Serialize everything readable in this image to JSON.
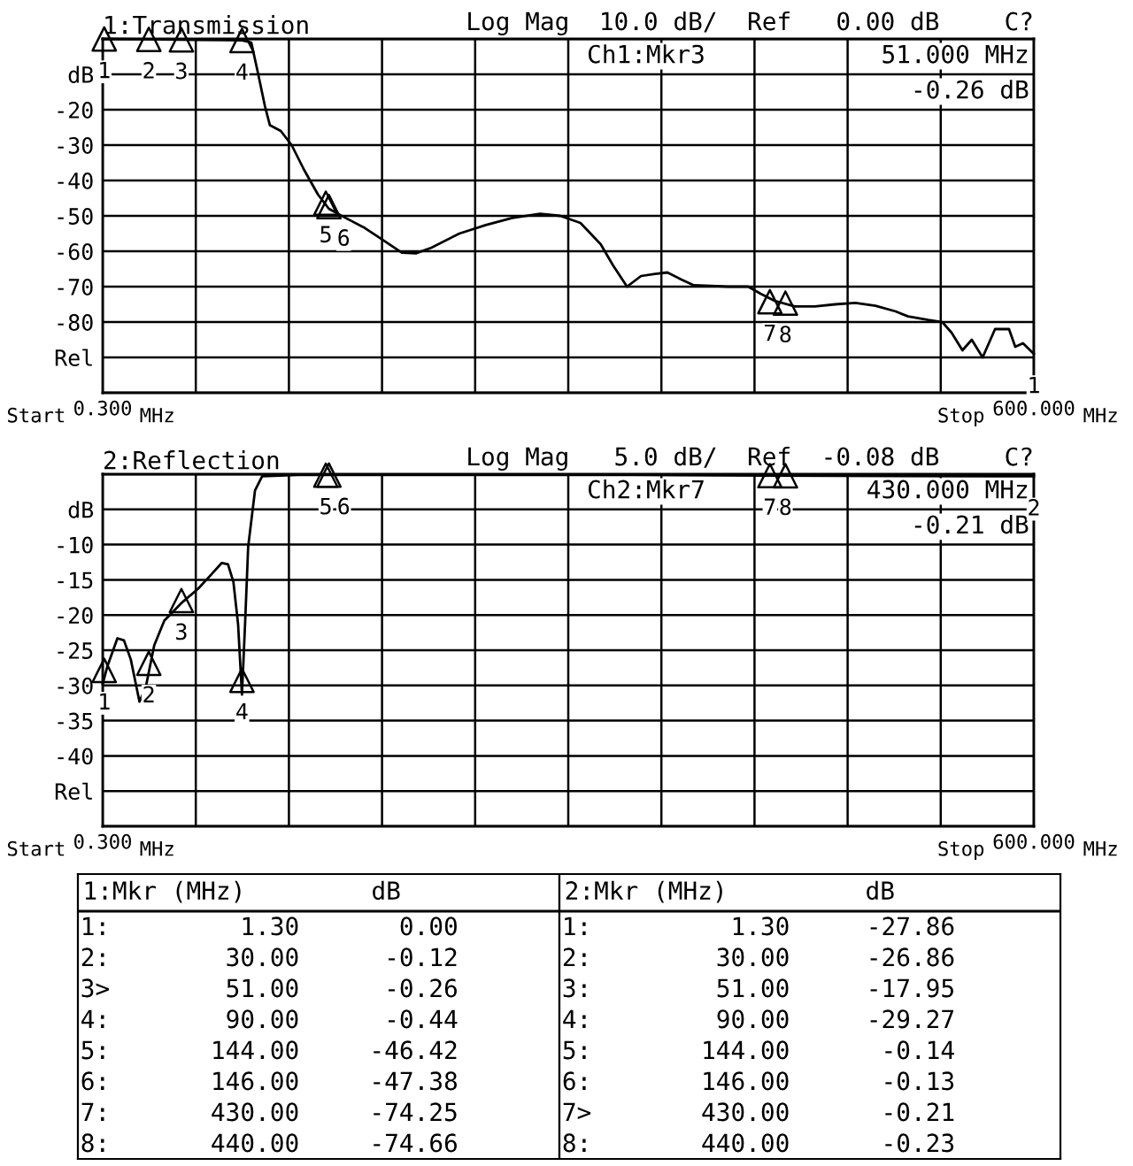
{
  "chart_data": [
    {
      "type": "line",
      "title": "1:Transmission",
      "grid": true,
      "legend": false,
      "xlim": [
        0.3,
        600
      ],
      "xticks": [
        {
          "value": 0.3,
          "label": "0.300"
        },
        {
          "value": 60.27,
          "label": null
        },
        {
          "value": 120.24,
          "label": null
        },
        {
          "value": 180.21,
          "label": null
        },
        {
          "value": 240.18,
          "label": null
        },
        {
          "value": 300.15,
          "label": null
        },
        {
          "value": 360.12,
          "label": null
        },
        {
          "value": 420.09,
          "label": null
        },
        {
          "value": 480.06,
          "label": null
        },
        {
          "value": 540.03,
          "label": null
        },
        {
          "value": 600,
          "label": "600.000"
        }
      ],
      "ylim": [
        -100,
        0
      ],
      "yticks": [
        {
          "value": 0,
          "label": null
        },
        {
          "value": -10,
          "label": "dB"
        },
        -20,
        -30,
        -40,
        -50,
        -60,
        -70,
        -80,
        {
          "value": -90,
          "label": "Rel"
        },
        {
          "value": -100,
          "label": null
        }
      ],
      "series": [
        {
          "type": "line",
          "color": "#000000",
          "x": [
            0.3,
            30,
            60,
            90,
            96,
            100,
            104.8,
            108,
            115,
            122,
            130,
            139,
            146,
            156,
            169,
            180,
            193,
            202,
            212,
            230,
            247,
            264,
            282,
            295,
            308,
            321,
            329,
            338,
            347,
            356,
            364,
            373,
            381,
            403,
            416,
            424,
            433,
            446,
            459,
            472,
            485,
            498,
            511,
            519,
            532,
            541,
            547,
            554,
            560,
            567,
            575,
            584,
            588,
            593,
            600
          ],
          "values": [
            0,
            -0.1,
            -0.3,
            -0.4,
            -1,
            -9,
            -19,
            -24.4,
            -26,
            -30,
            -37,
            -44,
            -48,
            -50.4,
            -53.4,
            -56.6,
            -60.4,
            -60.6,
            -59,
            -55,
            -52.6,
            -50.6,
            -49.4,
            -50,
            -52,
            -58,
            -64,
            -70,
            -67,
            -66.4,
            -66,
            -68,
            -69.6,
            -70,
            -70,
            -72,
            -74,
            -75.6,
            -75.6,
            -75,
            -74.6,
            -75.4,
            -77,
            -78.4,
            -79.4,
            -80,
            -83,
            -88,
            -85,
            -90,
            -82,
            -82,
            -87,
            -86,
            -89
          ]
        },
        {
          "type": "scatter",
          "color": "#000000",
          "marker": "triangle",
          "x": [
            1.3,
            30,
            51,
            90,
            144,
            146,
            430,
            440
          ],
          "values": [
            0.0,
            -0.12,
            -0.26,
            -0.44,
            -46.42,
            -47.38,
            -74.25,
            -74.66
          ]
        }
      ],
      "annotations": [
        "Log Mag  10.0 dB/  Ref   0.00 dB",
        "C?",
        "Ch1:Mkr3",
        "51.000 MHz",
        "-0.26 dB",
        "Start",
        "MHz",
        "Stop",
        "MHz",
        {
          "text": "1",
          "x": 1.3,
          "y": 0.0
        },
        {
          "text": "2",
          "x": 30,
          "y": -0.12
        },
        {
          "text": "3",
          "x": 51,
          "y": -0.26
        },
        {
          "text": "4",
          "x": 90,
          "y": -0.44
        },
        {
          "text": "5",
          "x": 144,
          "y": -46.42
        },
        {
          "text": "6",
          "x": 146,
          "y": -47.38
        },
        {
          "text": "7",
          "x": 430,
          "y": -74.25
        },
        {
          "text": "8",
          "x": 440,
          "y": -74.66
        },
        {
          "text": "1",
          "x": 600,
          "y": -89
        }
      ]
    },
    {
      "type": "line",
      "title": "2:Reflection",
      "grid": true,
      "legend": false,
      "xlim": [
        0.3,
        600
      ],
      "xticks": [
        {
          "value": 0.3,
          "label": "0.300"
        },
        {
          "value": 60.27,
          "label": null
        },
        {
          "value": 120.24,
          "label": null
        },
        {
          "value": 180.21,
          "label": null
        },
        {
          "value": 240.18,
          "label": null
        },
        {
          "value": 300.15,
          "label": null
        },
        {
          "value": 360.12,
          "label": null
        },
        {
          "value": 420.09,
          "label": null
        },
        {
          "value": 480.06,
          "label": null
        },
        {
          "value": 540.03,
          "label": null
        },
        {
          "value": 600,
          "label": "600.000"
        }
      ],
      "ylim": [
        -50,
        0
      ],
      "yticks": [
        {
          "value": 0,
          "label": null
        },
        {
          "value": -5,
          "label": "dB"
        },
        -10,
        -15,
        -20,
        -25,
        -30,
        -35,
        -40,
        {
          "value": -45,
          "label": "Rel"
        },
        {
          "value": -50,
          "label": null
        }
      ],
      "series": [
        {
          "type": "line",
          "color": "#000000",
          "x": [
            0.3,
            3.3,
            9.8,
            14,
            18.4,
            24,
            28,
            33.5,
            40,
            51,
            61.6,
            70,
            77,
            81,
            84.5,
            87.5,
            90,
            92,
            94,
            98.4,
            103,
            126,
            212,
            342,
            428,
            575,
            600
          ],
          "values": [
            -29.8,
            -27.3,
            -23.3,
            -23.6,
            -26.3,
            -32.3,
            -30.3,
            -24.3,
            -20.8,
            -18.3,
            -16.3,
            -14.3,
            -12.6,
            -12.8,
            -15.3,
            -21.3,
            -31.3,
            -21.3,
            -10.3,
            -2.3,
            -0.3,
            -0.1,
            -0.1,
            -0.1,
            -0.2,
            -0.3,
            -0.3
          ]
        },
        {
          "type": "scatter",
          "color": "#000000",
          "marker": "triangle",
          "x": [
            1.3,
            30,
            51,
            90,
            144,
            146,
            430,
            440
          ],
          "values": [
            -27.86,
            -26.86,
            -17.95,
            -29.27,
            -0.14,
            -0.13,
            -0.21,
            -0.23
          ]
        }
      ],
      "annotations": [
        "Log Mag   5.0 dB/  Ref  -0.08 dB",
        "C?",
        "Ch2:Mkr7",
        "430.000 MHz",
        "-0.21 dB",
        "Start",
        "MHz",
        "Stop",
        "MHz",
        {
          "text": "1",
          "x": 1.3,
          "y": -27.86
        },
        {
          "text": "2",
          "x": 30,
          "y": -26.86
        },
        {
          "text": "3",
          "x": 51,
          "y": -17.95
        },
        {
          "text": "4",
          "x": 90,
          "y": -29.27
        },
        {
          "text": "5",
          "x": 144,
          "y": -0.14
        },
        {
          "text": "6",
          "x": 146,
          "y": -0.13
        },
        {
          "text": "7",
          "x": 430,
          "y": -0.21
        },
        {
          "text": "8",
          "x": 440,
          "y": -0.23
        },
        {
          "text": "2",
          "x": 600,
          "y": -0.3
        }
      ]
    },
    {
      "type": "other",
      "title": "1:Mkr (MHz)",
      "annotations": [
        "dB",
        "1:",
        "1.30",
        "0.00",
        "2:",
        "30.00",
        "-0.12",
        "3>",
        "51.00",
        "-0.26",
        "4:",
        "90.00",
        "-0.44",
        "5:",
        "144.00",
        "-46.42",
        "6:",
        "146.00",
        "-47.38",
        "7:",
        "430.00",
        "-74.25",
        "8:",
        "440.00",
        "-74.66"
      ]
    },
    {
      "type": "other",
      "title": "2:Mkr (MHz)",
      "annotations": [
        "dB",
        "1:",
        "1.30",
        "-27.86",
        "2:",
        "30.00",
        "-26.86",
        "3:",
        "51.00",
        "-17.95",
        "4:",
        "90.00",
        "-29.27",
        "5:",
        "144.00",
        "-0.14",
        "6:",
        "146.00",
        "-0.13",
        "7>",
        "430.00",
        "-0.21",
        "8:",
        "440.00",
        "-0.23"
      ]
    }
  ]
}
